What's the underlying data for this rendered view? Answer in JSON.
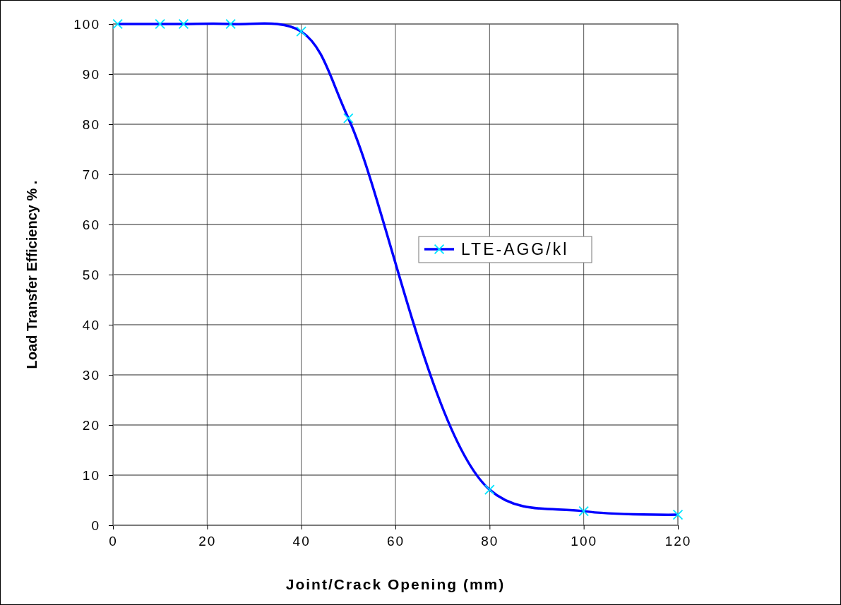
{
  "chart_data": {
    "type": "line",
    "xlabel": "Joint/Crack Opening (mm)",
    "ylabel": "Load Transfer Efficiency %     .",
    "xlim": [
      0,
      120
    ],
    "xticks": [
      0,
      20,
      40,
      60,
      80,
      100,
      120
    ],
    "ylim": [
      0,
      100
    ],
    "yticks": [
      0,
      10,
      20,
      30,
      40,
      50,
      60,
      70,
      80,
      90,
      100
    ],
    "grid": true,
    "legend": "right",
    "marker": "cross",
    "series": [
      {
        "name": "LTE-AGG/kl",
        "color": "#0000ff",
        "x": [
          1,
          10,
          15,
          25,
          40,
          50,
          80,
          100,
          120
        ],
        "values": [
          100,
          100,
          100,
          100,
          98.5,
          81.2,
          7.1,
          2.8,
          2.1
        ]
      }
    ]
  }
}
